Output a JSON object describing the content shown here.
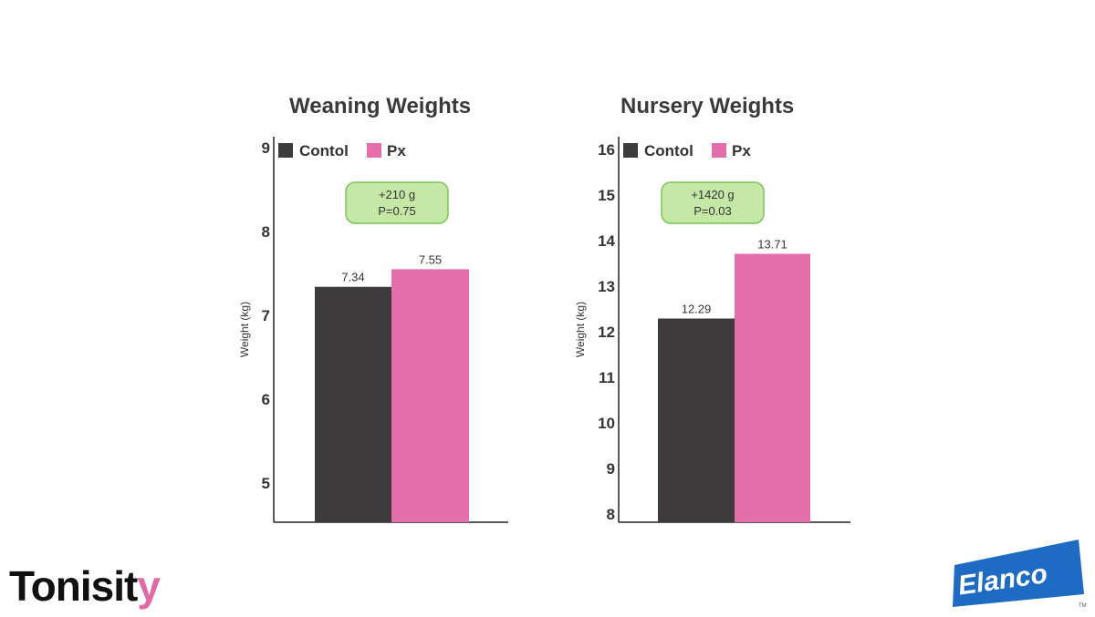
{
  "colors": {
    "control": "#3d3b3c",
    "px": "#e46ea9",
    "badge_fill": "#c5e8a6",
    "badge_stroke": "#7cc55a",
    "brand_pink": "#e06aa8",
    "elanco_blue": "#1e6bc4"
  },
  "brand": {
    "tonisity_prefix": "Tonisit",
    "tonisity_suffix": "y",
    "elanco": "Elanco",
    "elanco_tm": "TM"
  },
  "chart_data": [
    {
      "type": "bar",
      "title": "Weaning Weights",
      "ylabel": "Weight (kg)",
      "ylim": [
        4.5,
        9
      ],
      "yticks": [
        5,
        6,
        7,
        8,
        9
      ],
      "legend": {
        "placement": "top-left",
        "entries": [
          "Contol",
          "Px"
        ]
      },
      "series": [
        {
          "name": "Contol",
          "value": 7.34,
          "label": "7.34"
        },
        {
          "name": "Px",
          "value": 7.55,
          "label": "7.55"
        }
      ],
      "annotation": {
        "line1": "+210 g",
        "line2": "P=0.75"
      }
    },
    {
      "type": "bar",
      "title": "Nursery Weights",
      "ylabel": "Weight (kg)",
      "ylim": [
        7.8,
        16
      ],
      "yticks": [
        8,
        9,
        10,
        11,
        12,
        13,
        14,
        15,
        16
      ],
      "legend": {
        "placement": "top-left",
        "entries": [
          "Contol",
          "Px"
        ]
      },
      "series": [
        {
          "name": "Contol",
          "value": 12.29,
          "label": "12.29"
        },
        {
          "name": "Px",
          "value": 13.71,
          "label": "13.71"
        }
      ],
      "annotation": {
        "line1": "+1420 g",
        "line2": "P=0.03"
      }
    }
  ]
}
